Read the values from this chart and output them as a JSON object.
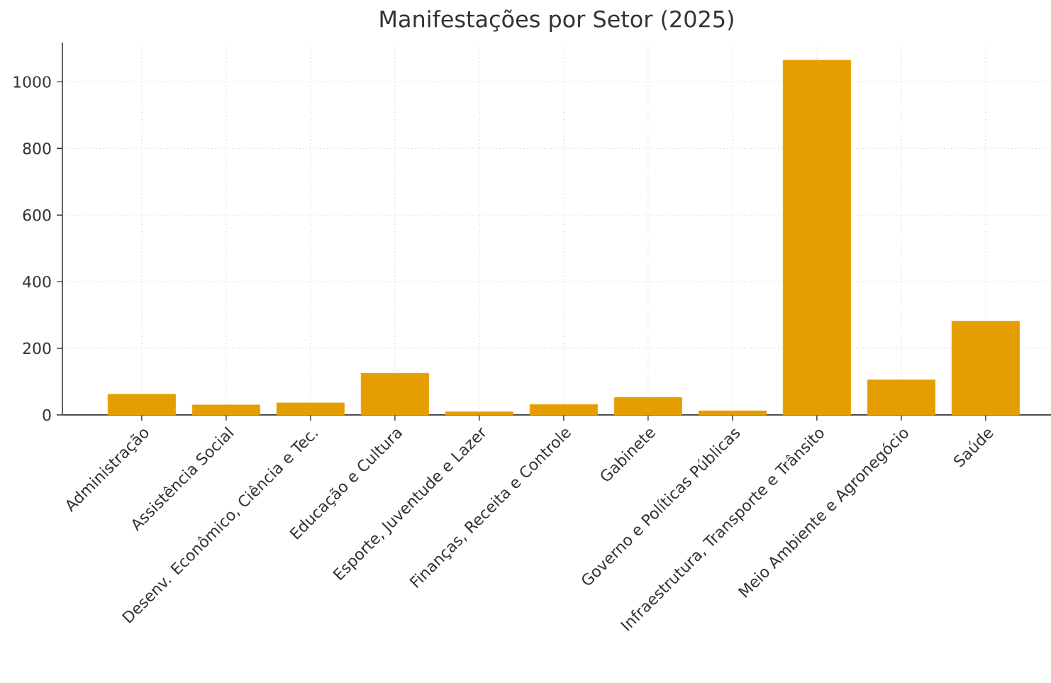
{
  "chart_data": {
    "type": "bar",
    "title": "Manifestações por Setor (2025)",
    "categories": [
      "Administração",
      "Assistência Social",
      "Desenv. Econômico, Ciência e Tec.",
      "Educação e Cultura",
      "Esporte, Juventude e Lazer",
      "Finanças, Receita e Controle",
      "Gabinete",
      "Governo e Políticas Públicas",
      "Infraestrutura, Transporte e Trânsito",
      "Meio Ambiente e Agronegócio",
      "Saúde"
    ],
    "values": [
      62,
      30,
      36,
      125,
      9,
      31,
      52,
      12,
      1065,
      105,
      281
    ],
    "color": "#e49e00",
    "ylim": [
      0,
      1118
    ],
    "yticks": [
      0,
      200,
      400,
      600,
      800,
      1000
    ],
    "grid": true
  }
}
